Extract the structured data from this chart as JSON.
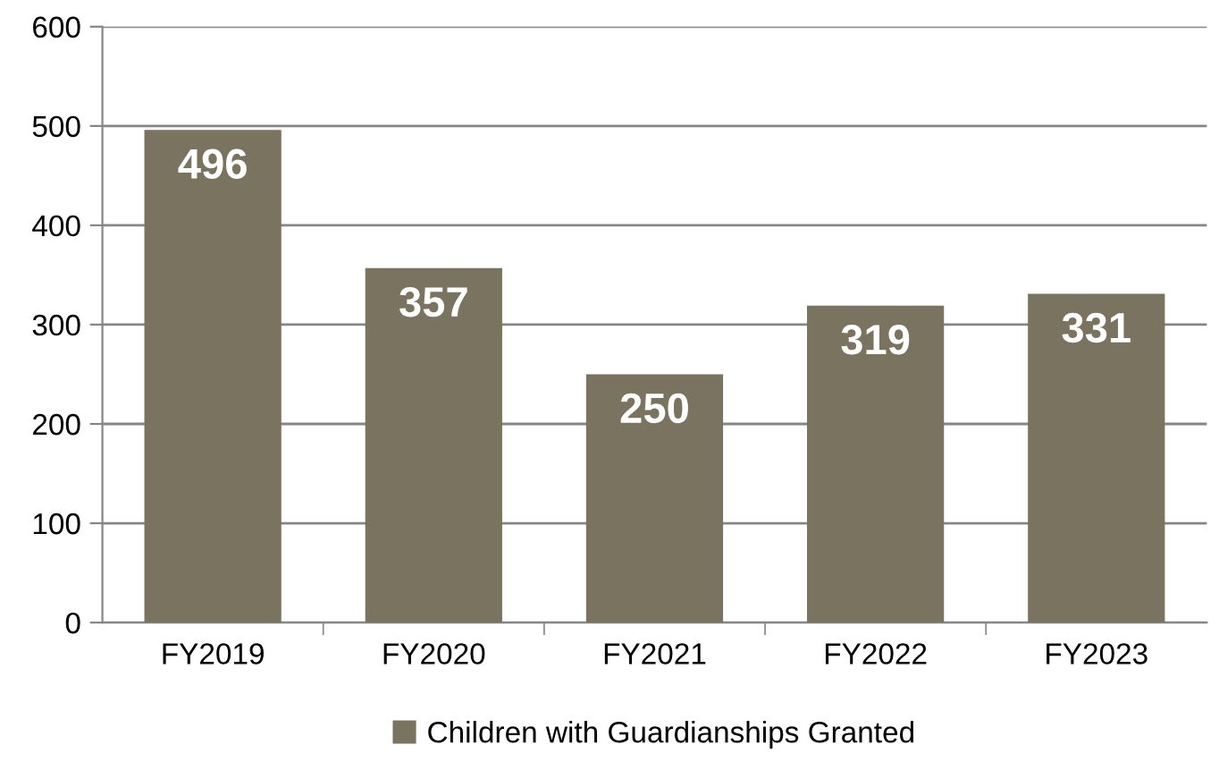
{
  "chart_data": {
    "type": "bar",
    "categories": [
      "FY2019",
      "FY2020",
      "FY2021",
      "FY2022",
      "FY2023"
    ],
    "series": [
      {
        "name": "Children with Guardianships Granted",
        "color": "#7a735f",
        "values": [
          496,
          357,
          250,
          319,
          331
        ]
      }
    ],
    "ylim": [
      0,
      600
    ],
    "yticks": [
      0,
      100,
      200,
      300,
      400,
      500,
      600
    ],
    "grid": "y",
    "legend": "bottom",
    "data_labels": true
  }
}
